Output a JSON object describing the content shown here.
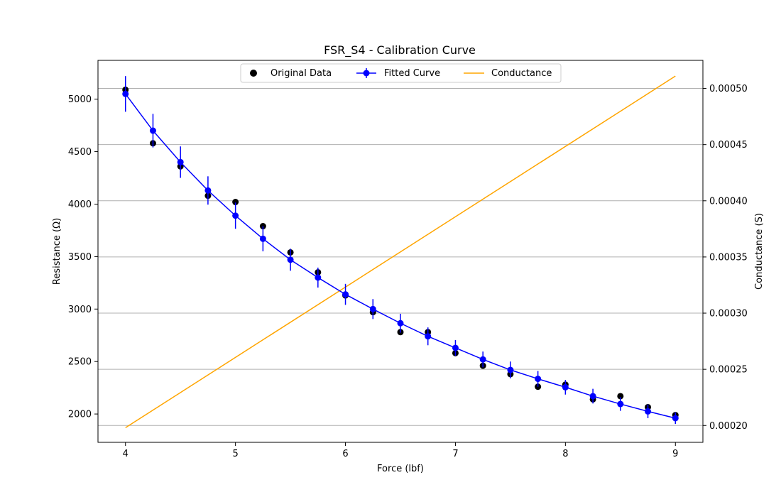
{
  "chart_data": {
    "type": "line",
    "title": "FSR_S4 - Calibration Curve",
    "xlabel": "Force (lbf)",
    "ylabel": "Resistance (Ω)",
    "y2label": "Conductance (S)",
    "xlim": [
      3.75,
      9.25
    ],
    "ylim": [
      1730,
      5370
    ],
    "y2lim": [
      0.000185,
      0.000525
    ],
    "x_ticks": [
      4,
      5,
      6,
      7,
      8,
      9
    ],
    "x_tick_labels": [
      "4",
      "5",
      "6",
      "7",
      "8",
      "9"
    ],
    "y_ticks": [
      2000,
      2500,
      3000,
      3500,
      4000,
      4500,
      5000
    ],
    "y_tick_labels": [
      "2000",
      "2500",
      "3000",
      "3500",
      "4000",
      "4500",
      "5000"
    ],
    "y2_ticks": [
      0.0002,
      0.00025,
      0.0003,
      0.00035,
      0.0004,
      0.00045,
      0.0005
    ],
    "y2_tick_labels": [
      "0.00020",
      "0.00025",
      "0.00030",
      "0.00035",
      "0.00040",
      "0.00045",
      "0.00050"
    ],
    "grid": "horizontal-secondary-axis",
    "legend_position": "top-center",
    "series": [
      {
        "name": "Original Data",
        "kind": "scatter",
        "axis": "left",
        "color": "#000000",
        "x": [
          4,
          4.25,
          4.5,
          4.75,
          5,
          5.25,
          5.5,
          5.75,
          6,
          6.25,
          6.5,
          6.75,
          7,
          7.25,
          7.5,
          7.75,
          8,
          8.25,
          8.5,
          8.75,
          9
        ],
        "y": [
          5090,
          4580,
          4360,
          4080,
          4020,
          3790,
          3540,
          3350,
          3130,
          2970,
          2780,
          2780,
          2580,
          2460,
          2380,
          2260,
          2280,
          2140,
          2170,
          2065,
          1990
        ]
      },
      {
        "name": "Fitted Curve",
        "kind": "line-errorbar",
        "axis": "left",
        "color": "#0000ff",
        "x": [
          4,
          4.25,
          4.5,
          4.75,
          5,
          5.25,
          5.5,
          5.75,
          6,
          6.25,
          6.5,
          6.75,
          7,
          7.25,
          7.5,
          7.75,
          8,
          8.25,
          8.5,
          8.75,
          9
        ],
        "y": [
          5050,
          4700,
          4400,
          4130,
          3890,
          3670,
          3470,
          3300,
          3140,
          3000,
          2865,
          2740,
          2630,
          2520,
          2420,
          2335,
          2255,
          2170,
          2095,
          2025,
          1960
        ],
        "err": [
          170,
          160,
          150,
          135,
          125,
          120,
          105,
          95,
          100,
          95,
          90,
          85,
          75,
          75,
          80,
          75,
          70,
          70,
          65,
          65,
          55
        ]
      },
      {
        "name": "Conductance",
        "kind": "line",
        "axis": "right",
        "color": "#ffa500",
        "x": [
          4,
          9
        ],
        "y": [
          0.000198,
          0.000511
        ]
      }
    ]
  }
}
